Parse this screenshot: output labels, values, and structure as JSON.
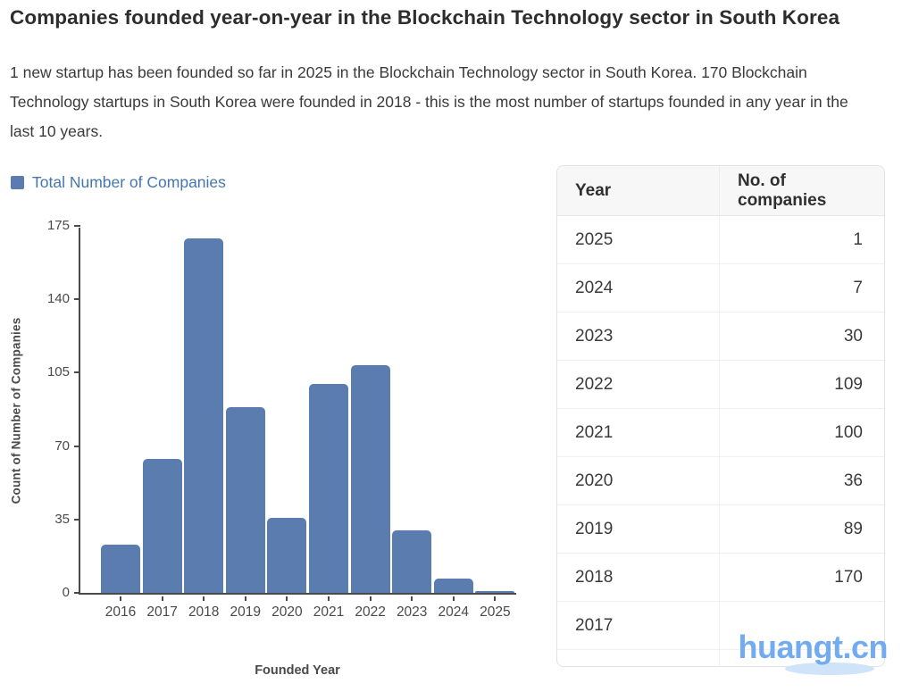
{
  "page": {
    "title": "Companies founded year-on-year in the Blockchain Technology sector in South Korea",
    "description": "1 new startup has been founded so far in 2025 in the Blockchain Technology sector in South Korea. 170 Blockchain Technology startups in South Korea were founded in 2018 - this is the most number of startups founded in any year in the last 10 years."
  },
  "legend": {
    "label": "Total Number of Companies",
    "swatch_color": "#5b7cae"
  },
  "chart_data": {
    "type": "bar",
    "title": "",
    "series_name": "Total Number of Companies",
    "categories": [
      "2016",
      "2017",
      "2018",
      "2019",
      "2020",
      "2021",
      "2022",
      "2023",
      "2024",
      "2025"
    ],
    "values": [
      23,
      64,
      170,
      89,
      36,
      100,
      109,
      30,
      7,
      1
    ],
    "xlabel": "Founded Year",
    "ylabel": "Count of Number of Companies",
    "ylim": [
      0,
      175
    ],
    "yticks": [
      0,
      35,
      70,
      105,
      140,
      175
    ],
    "grid": false,
    "legend_position": "top-left",
    "bar_color": "#5b7cae"
  },
  "table": {
    "columns": [
      "Year",
      "No. of companies"
    ],
    "rows": [
      {
        "year": "2025",
        "companies": "1"
      },
      {
        "year": "2024",
        "companies": "7"
      },
      {
        "year": "2023",
        "companies": "30"
      },
      {
        "year": "2022",
        "companies": "109"
      },
      {
        "year": "2021",
        "companies": "100"
      },
      {
        "year": "2020",
        "companies": "36"
      },
      {
        "year": "2019",
        "companies": "89"
      },
      {
        "year": "2018",
        "companies": "170"
      },
      {
        "year": "2017",
        "companies": ""
      }
    ]
  },
  "watermark": {
    "text": "huangt.cn",
    "color": "#72abef"
  }
}
